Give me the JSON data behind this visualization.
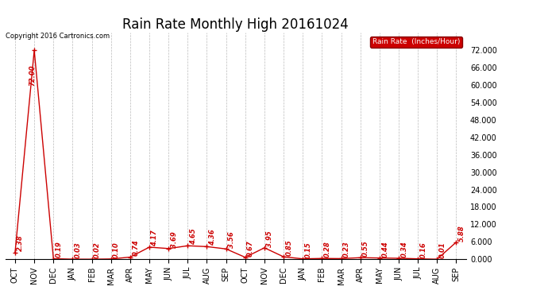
{
  "title": "Rain Rate Monthly High 20161024",
  "categories": [
    "OCT",
    "NOV",
    "DEC",
    "JAN",
    "FEB",
    "MAR",
    "APR",
    "MAY",
    "JUN",
    "JUL",
    "AUG",
    "SEP",
    "OCT",
    "NOV",
    "DEC",
    "JAN",
    "FEB",
    "MAR",
    "APR",
    "MAY",
    "JUN",
    "JUL",
    "AUG",
    "SEP"
  ],
  "values": [
    2.38,
    72.0,
    0.19,
    0.03,
    0.02,
    0.1,
    0.74,
    4.17,
    3.69,
    4.65,
    4.36,
    3.56,
    0.67,
    3.95,
    0.85,
    0.15,
    0.28,
    0.23,
    0.55,
    0.44,
    0.34,
    0.16,
    0.01,
    5.88
  ],
  "line_color": "#cc0000",
  "marker_color": "#cc0000",
  "background_color": "#ffffff",
  "grid_color": "#aaaaaa",
  "ylim": [
    0,
    78
  ],
  "yticks": [
    0.0,
    6.0,
    12.0,
    18.0,
    24.0,
    30.0,
    36.0,
    42.0,
    48.0,
    54.0,
    60.0,
    66.0,
    72.0
  ],
  "copyright_text": "Copyright 2016 Cartronics.com",
  "legend_label": "Rain Rate  (Inches/Hour)",
  "legend_bg": "#cc0000",
  "legend_text_color": "#ffffff",
  "title_fontsize": 12,
  "label_fontsize": 7,
  "annotation_fontsize": 6,
  "nov_annotation": "72.00"
}
